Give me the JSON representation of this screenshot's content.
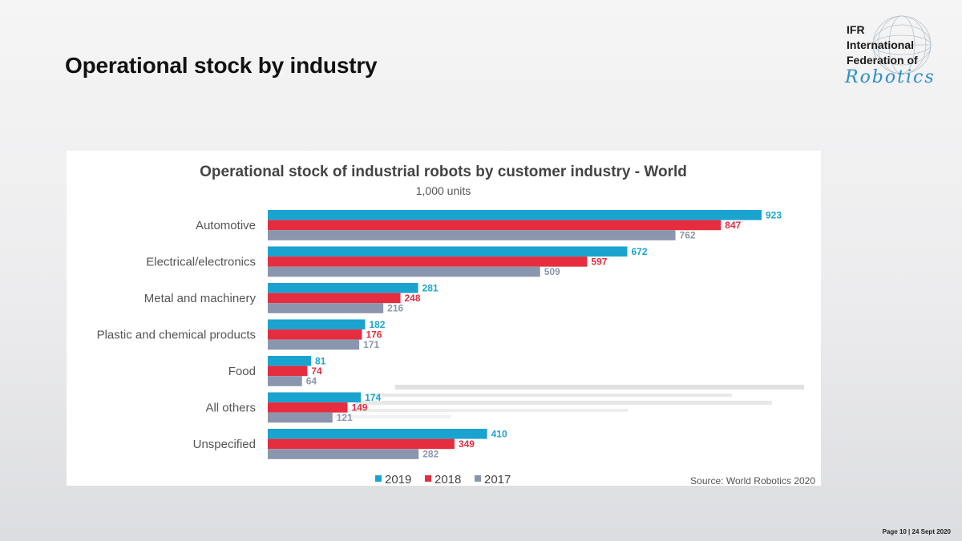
{
  "slide": {
    "title": "Operational stock by industry",
    "footer": "Page 10 |  24 Sept 2020"
  },
  "logo": {
    "line1": "IFR",
    "line2": "International",
    "line3": "Federation of",
    "script": "Robotics",
    "icon": "globe-icon"
  },
  "chart_data": {
    "type": "bar",
    "orientation": "horizontal",
    "title": "Operational stock of industrial robots by customer industry - World",
    "subtitle": "1,000 units",
    "source": "Source: World Robotics 2020",
    "categories": [
      "Automotive",
      "Electrical/electronics",
      "Metal and machinery",
      "Plastic and chemical products",
      "Food",
      "All others",
      "Unspecified"
    ],
    "series": [
      {
        "name": "2019",
        "color": "#1ba3d0",
        "values": [
          923,
          672,
          281,
          182,
          81,
          174,
          410
        ]
      },
      {
        "name": "2018",
        "color": "#e52d3f",
        "values": [
          847,
          597,
          248,
          176,
          74,
          149,
          349
        ]
      },
      {
        "name": "2017",
        "color": "#8a96ad",
        "values": [
          762,
          509,
          216,
          171,
          64,
          121,
          282
        ]
      }
    ],
    "xlim": [
      0,
      923
    ],
    "grid": false,
    "legend": "bottom-center",
    "data_labels": true
  }
}
